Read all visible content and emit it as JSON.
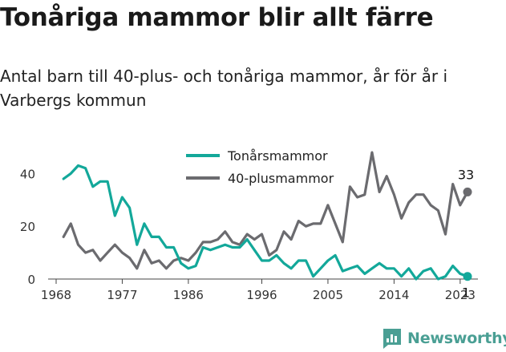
{
  "title": "Tonåriga mammor blir allt färre",
  "subtitle": "Antal barn till 40-plus- och tonåriga mammor, år för år i Varbergs kommun",
  "brand": "Newsworthy",
  "colors": {
    "teen": "#13a89a",
    "forty": "#6b6b6f",
    "brand": "#4a9f94"
  },
  "chart_data": {
    "type": "line",
    "title": "Tonåriga mammor blir allt färre",
    "xlabel": "",
    "ylabel": "",
    "x_ticks": [
      1968,
      1977,
      1986,
      1996,
      2005,
      2014,
      2023
    ],
    "y_ticks": [
      0,
      20,
      40
    ],
    "xlim": [
      1968,
      2024
    ],
    "ylim": [
      0,
      48
    ],
    "grid": false,
    "legend": "top-center",
    "series": [
      {
        "name": "Tonårsmammor",
        "x": [
          1969,
          1970,
          1971,
          1972,
          1973,
          1974,
          1975,
          1976,
          1977,
          1978,
          1979,
          1980,
          1981,
          1982,
          1983,
          1984,
          1985,
          1986,
          1987,
          1988,
          1989,
          1990,
          1991,
          1992,
          1993,
          1994,
          1995,
          1996,
          1997,
          1998,
          1999,
          2000,
          2001,
          2002,
          2003,
          2004,
          2005,
          2006,
          2007,
          2008,
          2009,
          2010,
          2011,
          2012,
          2013,
          2014,
          2015,
          2016,
          2017,
          2018,
          2019,
          2020,
          2021,
          2022,
          2023,
          2024
        ],
        "values": [
          38,
          40,
          43,
          42,
          35,
          37,
          37,
          24,
          31,
          27,
          13,
          21,
          16,
          16,
          12,
          12,
          6,
          4,
          5,
          12,
          11,
          12,
          13,
          12,
          12,
          15,
          11,
          7,
          7,
          9,
          6,
          4,
          7,
          7,
          1,
          4,
          7,
          9,
          3,
          4,
          5,
          2,
          4,
          6,
          4,
          4,
          1,
          4,
          0,
          3,
          4,
          0,
          1,
          5,
          2,
          1
        ]
      },
      {
        "name": "40-plusmammor",
        "x": [
          1969,
          1970,
          1971,
          1972,
          1973,
          1974,
          1975,
          1976,
          1977,
          1978,
          1979,
          1980,
          1981,
          1982,
          1983,
          1984,
          1985,
          1986,
          1987,
          1988,
          1989,
          1990,
          1991,
          1992,
          1993,
          1994,
          1995,
          1996,
          1997,
          1998,
          1999,
          2000,
          2001,
          2002,
          2003,
          2004,
          2005,
          2006,
          2007,
          2008,
          2009,
          2010,
          2011,
          2012,
          2013,
          2014,
          2015,
          2016,
          2017,
          2018,
          2019,
          2020,
          2021,
          2022,
          2023,
          2024
        ],
        "values": [
          16,
          21,
          13,
          10,
          11,
          7,
          10,
          13,
          10,
          8,
          4,
          11,
          6,
          7,
          4,
          7,
          8,
          7,
          10,
          14,
          14,
          15,
          18,
          14,
          13,
          17,
          15,
          17,
          9,
          11,
          18,
          15,
          22,
          20,
          21,
          21,
          28,
          21,
          14,
          35,
          31,
          32,
          48,
          33,
          39,
          32,
          23,
          29,
          32,
          32,
          28,
          26,
          17,
          36,
          28,
          33
        ]
      }
    ],
    "annotations": [
      {
        "series": "40-plusmammor",
        "x": 2024,
        "text": "33"
      },
      {
        "series": "Tonårsmammor",
        "x": 2024,
        "text": "1"
      }
    ]
  }
}
